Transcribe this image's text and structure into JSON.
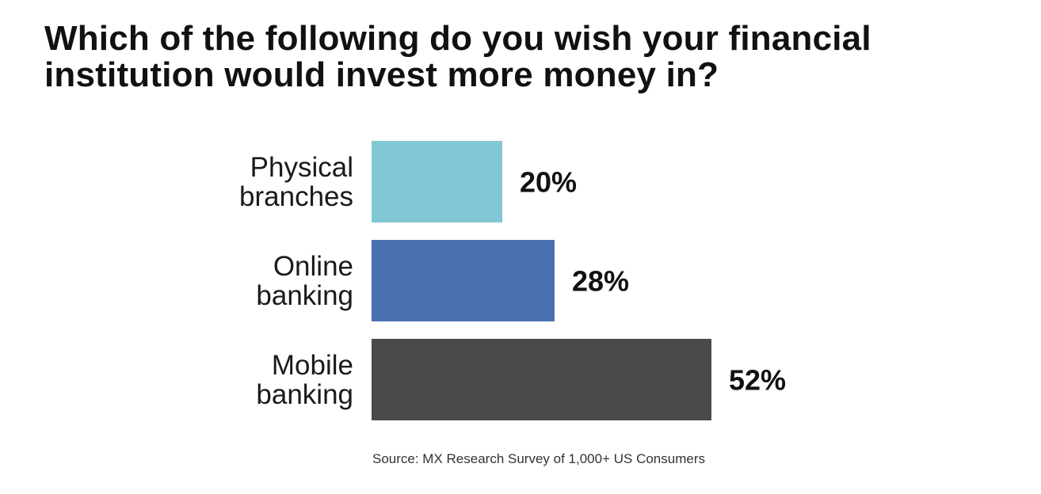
{
  "chart_data": {
    "type": "bar",
    "orientation": "horizontal",
    "title": "Which of the following do you wish your financial institution would invest more money in?",
    "categories": [
      [
        "Physical",
        "branches"
      ],
      [
        "Online",
        "banking"
      ],
      [
        "Mobile",
        "banking"
      ]
    ],
    "values": [
      20,
      28,
      52
    ],
    "value_labels": [
      "20%",
      "28%",
      "52%"
    ],
    "colors": [
      "#82c7d6",
      "#4a70b0",
      "#4a4a4a"
    ],
    "xlabel": "",
    "ylabel": "",
    "xlim": [
      0,
      52
    ],
    "grid": false,
    "legend": "none",
    "source": "Source: MX Research Survey of 1,000+ US Consumers"
  }
}
